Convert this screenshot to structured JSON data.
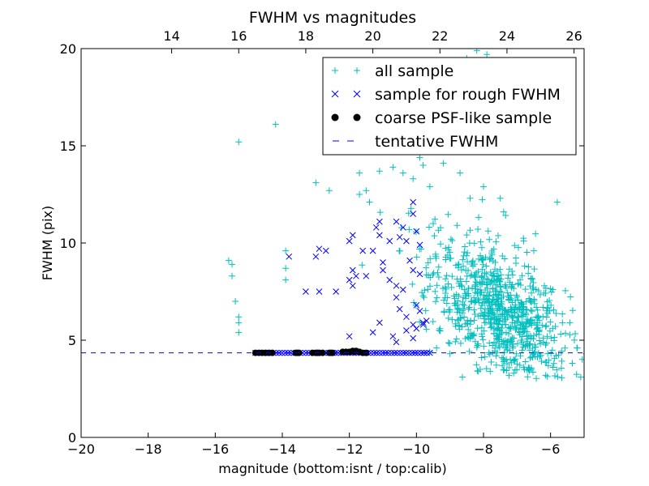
{
  "chart_data": {
    "type": "scatter",
    "title": "FWHM vs magnitudes",
    "xlabel": "magnitude (bottom:isnt / top:calib)",
    "ylabel": "FWHM (pix)",
    "xlim": [
      -20,
      -5
    ],
    "ylim": [
      0,
      20
    ],
    "x_ticks": [
      -20,
      -18,
      -16,
      -14,
      -12,
      -10,
      -8,
      -6
    ],
    "x_tick_labels": [
      "−20",
      "−18",
      "−16",
      "−14",
      "−12",
      "−10",
      "−8",
      "−6"
    ],
    "y_ticks": [
      0,
      5,
      10,
      15,
      20
    ],
    "y_tick_labels": [
      "0",
      "5",
      "10",
      "15",
      "20"
    ],
    "top_axis": {
      "offset": 31.3,
      "ticks": [
        14,
        16,
        18,
        20,
        22,
        24,
        26
      ],
      "tick_labels": [
        "14",
        "16",
        "18",
        "20",
        "22",
        "24",
        "26"
      ]
    },
    "legend_position": "upper-right",
    "tentative_fwhm": 4.35,
    "series": [
      {
        "name": "all sample",
        "marker": "plus",
        "color": "#00bfbf",
        "points": [
          [
            -15.3,
            15.2
          ],
          [
            -14.2,
            16.1
          ],
          [
            -15.6,
            9.1
          ],
          [
            -15.5,
            8.9
          ],
          [
            -15.5,
            8.3
          ],
          [
            -15.4,
            7.0
          ],
          [
            -15.3,
            6.2
          ],
          [
            -15.3,
            5.9
          ],
          [
            -15.3,
            5.4
          ],
          [
            -13.9,
            9.6
          ],
          [
            -13.9,
            8.7
          ],
          [
            -13.9,
            8.1
          ],
          [
            -13.0,
            13.1
          ],
          [
            -12.6,
            12.7
          ],
          [
            -11.7,
            13.6
          ],
          [
            -11.5,
            12.7
          ],
          [
            -11.1,
            13.7
          ],
          [
            -11.7,
            12.5
          ],
          [
            -11.4,
            12.1
          ],
          [
            -10.7,
            13.9
          ],
          [
            -10.4,
            13.6
          ],
          [
            -10.1,
            13.3
          ],
          [
            -9.9,
            14.4
          ],
          [
            -9.8,
            14.0
          ],
          [
            -8.9,
            18.6
          ],
          [
            -8.8,
            18.0
          ],
          [
            -8.5,
            19.5
          ],
          [
            -8.2,
            19.9
          ],
          [
            -7.9,
            19.7
          ],
          [
            -8.0,
            18.4
          ],
          [
            -8.2,
            16.9
          ],
          [
            -7.7,
            15.3
          ],
          [
            -7.5,
            15.0
          ],
          [
            -8.7,
            13.6
          ],
          [
            -9.2,
            14.1
          ],
          [
            -9.6,
            12.9
          ],
          [
            -6.8,
            10.1
          ],
          [
            -6.5,
            9.6
          ],
          [
            -5.8,
            12.1
          ],
          [
            -8.4,
            12.3
          ],
          [
            -8.0,
            12.9
          ],
          [
            -9.5,
            11.0
          ],
          [
            -7.5,
            12.3
          ],
          [
            -7.4,
            11.6
          ],
          [
            -5.1,
            3.1
          ],
          [
            -5.2,
            4.6
          ],
          [
            -5.9,
            3.8
          ],
          [
            -6.1,
            5.2
          ],
          [
            -9.0,
            4.3
          ],
          [
            -9.4,
            4.6
          ],
          [
            -9.6,
            4.4
          ],
          [
            -7.8,
            3.4
          ],
          [
            -7.1,
            3.3
          ],
          [
            -6.8,
            3.6
          ],
          [
            -8.1,
            3.5
          ],
          [
            -7.4,
            3.9
          ],
          [
            -7.2,
            4.0
          ],
          [
            -6.9,
            4.2
          ]
        ],
        "cluster": {
          "center": [
            -7.6,
            6.6
          ],
          "spread": [
            1.0,
            1.6
          ],
          "count": 800
        }
      },
      {
        "name": "sample for rough FWHM",
        "marker": "x",
        "color": "#0000ff",
        "points": [
          [
            -13.8,
            9.3
          ],
          [
            -13.0,
            9.3
          ],
          [
            -12.7,
            9.6
          ],
          [
            -12.9,
            9.7
          ],
          [
            -13.3,
            7.5
          ],
          [
            -12.9,
            7.5
          ],
          [
            -12.4,
            7.5
          ],
          [
            -12.0,
            8.1
          ],
          [
            -11.8,
            8.3
          ],
          [
            -11.9,
            7.8
          ],
          [
            -11.9,
            8.6
          ],
          [
            -11.9,
            10.4
          ],
          [
            -12.0,
            10.1
          ],
          [
            -11.6,
            9.6
          ],
          [
            -11.1,
            10.4
          ],
          [
            -10.8,
            10.1
          ],
          [
            -10.5,
            10.3
          ],
          [
            -10.3,
            10.1
          ],
          [
            -10.4,
            10.8
          ],
          [
            -10.0,
            10.6
          ],
          [
            -9.9,
            9.9
          ],
          [
            -10.1,
            11.5
          ],
          [
            -10.1,
            12.1
          ],
          [
            -10.6,
            11.1
          ],
          [
            -11.1,
            11.1
          ],
          [
            -11.2,
            10.8
          ],
          [
            -11.5,
            8.3
          ],
          [
            -11.3,
            9.6
          ],
          [
            -11.0,
            8.6
          ],
          [
            -10.8,
            8.1
          ],
          [
            -10.6,
            7.8
          ],
          [
            -10.4,
            7.6
          ],
          [
            -10.6,
            7.2
          ],
          [
            -10.5,
            6.6
          ],
          [
            -10.3,
            6.2
          ],
          [
            -10.1,
            5.8
          ],
          [
            -10.0,
            5.6
          ],
          [
            -10.3,
            5.5
          ],
          [
            -10.7,
            5.2
          ],
          [
            -10.6,
            4.9
          ],
          [
            -10.1,
            5.1
          ],
          [
            -9.8,
            5.9
          ],
          [
            -9.9,
            6.5
          ],
          [
            -10.0,
            6.8
          ],
          [
            -9.9,
            8.4
          ],
          [
            -10.1,
            8.6
          ],
          [
            -10.2,
            9.1
          ],
          [
            -11.1,
            5.9
          ],
          [
            -11.3,
            5.4
          ],
          [
            -12.0,
            5.2
          ],
          [
            -11.0,
            9.0
          ],
          [
            -9.7,
            6.0
          ],
          [
            -9.8,
            5.8
          ]
        ],
        "baseline": {
          "from": -14.8,
          "to": -9.6,
          "y": 4.35,
          "count": 60
        }
      },
      {
        "name": "coarse PSF-like sample",
        "marker": "dot",
        "color": "#000000",
        "points": [
          [
            -14.8,
            4.35
          ],
          [
            -14.6,
            4.35
          ],
          [
            -14.5,
            4.35
          ],
          [
            -14.4,
            4.35
          ],
          [
            -14.3,
            4.35
          ],
          [
            -13.6,
            4.35
          ],
          [
            -13.5,
            4.35
          ],
          [
            -13.1,
            4.35
          ],
          [
            -13.0,
            4.35
          ],
          [
            -12.9,
            4.35
          ],
          [
            -12.8,
            4.35
          ],
          [
            -12.6,
            4.35
          ],
          [
            -12.5,
            4.35
          ],
          [
            -12.2,
            4.4
          ],
          [
            -12.1,
            4.4
          ],
          [
            -12.0,
            4.4
          ],
          [
            -11.9,
            4.45
          ],
          [
            -11.8,
            4.45
          ],
          [
            -11.7,
            4.4
          ],
          [
            -11.6,
            4.35
          ],
          [
            -11.5,
            4.35
          ],
          [
            -14.7,
            4.35
          ],
          [
            -13.55,
            4.35
          ],
          [
            -12.95,
            4.35
          ],
          [
            -12.55,
            4.35
          ],
          [
            -11.85,
            4.4
          ]
        ]
      },
      {
        "name": "tentative FWHM",
        "marker": "dashed-line",
        "color": "#0000ff"
      }
    ]
  }
}
